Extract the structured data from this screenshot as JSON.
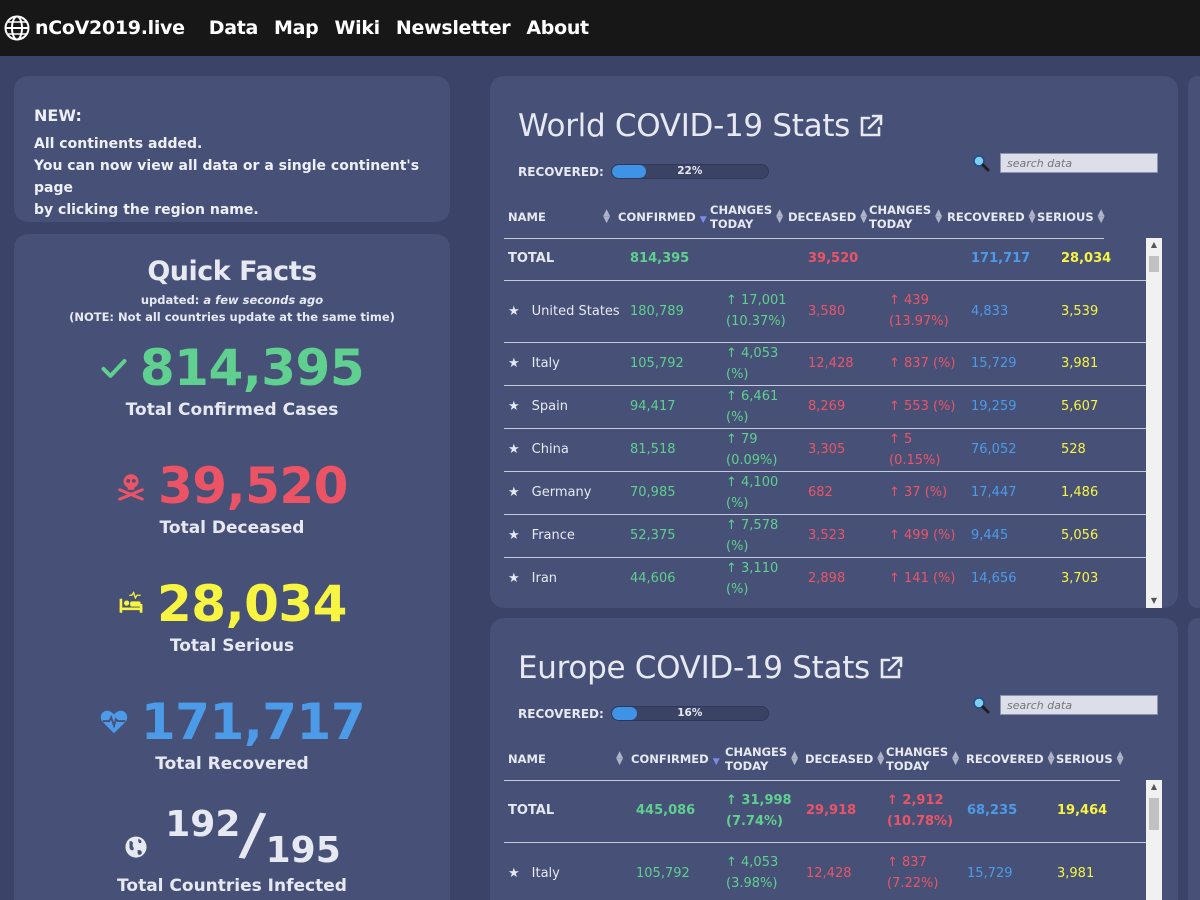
{
  "nav": {
    "brand": "nCoV2019.live",
    "links": [
      "Data",
      "Map",
      "Wiki",
      "Newsletter",
      "About"
    ]
  },
  "news": {
    "heading": "NEW:",
    "lines": [
      "All continents added.",
      "You can now view all data or a single continent's page",
      "by clicking the region name."
    ]
  },
  "facts": {
    "title": "Quick Facts",
    "updated_label": "updated:",
    "updated_value": "a few seconds ago",
    "note": "(NOTE: Not all countries update at the same time)",
    "confirmed": {
      "value": "814,395",
      "label": "Total Confirmed Cases"
    },
    "deceased": {
      "value": "39,520",
      "label": "Total Deceased"
    },
    "serious": {
      "value": "28,034",
      "label": "Total Serious"
    },
    "recovered": {
      "value": "171,717",
      "label": "Total Recovered"
    },
    "countries": {
      "infected": "192",
      "total": "195",
      "label": "Total Countries Infected"
    }
  },
  "colors": {
    "confirmed": "#5fd08f",
    "deceased": "#ec5466",
    "serious": "#f7f442",
    "recovered": "#4c9be8"
  },
  "world": {
    "title": "World COVID-19 Stats",
    "recovered_label": "RECOVERED:",
    "recovered_pct": 22,
    "recovered_text": "22%",
    "search_placeholder": "search data",
    "headers": [
      "NAME",
      "CONFIRMED",
      "CHANGES TODAY",
      "DECEASED",
      "CHANGES TODAY",
      "RECOVERED",
      "SERIOUS"
    ],
    "total": {
      "name": "TOTAL",
      "confirmed": "814,395",
      "conf_change": "",
      "deceased": "39,520",
      "dec_change": "",
      "recovered": "171,717",
      "serious": "28,034"
    },
    "rows": [
      {
        "name": "United States",
        "confirmed": "180,789",
        "conf_change": "↑ 17,001 (10.37%)",
        "deceased": "3,580",
        "dec_change": "↑ 439 (13.97%)",
        "recovered": "4,833",
        "serious": "3,539"
      },
      {
        "name": "Italy",
        "confirmed": "105,792",
        "conf_change": "↑ 4,053 (%)",
        "deceased": "12,428",
        "dec_change": "↑ 837 (%)",
        "recovered": "15,729",
        "serious": "3,981"
      },
      {
        "name": "Spain",
        "confirmed": "94,417",
        "conf_change": "↑ 6,461 (%)",
        "deceased": "8,269",
        "dec_change": "↑ 553 (%)",
        "recovered": "19,259",
        "serious": "5,607"
      },
      {
        "name": "China",
        "confirmed": "81,518",
        "conf_change": "↑ 79 (0.09%)",
        "deceased": "3,305",
        "dec_change": "↑ 5 (0.15%)",
        "recovered": "76,052",
        "serious": "528"
      },
      {
        "name": "Germany",
        "confirmed": "70,985",
        "conf_change": "↑ 4,100 (%)",
        "deceased": "682",
        "dec_change": "↑ 37 (%)",
        "recovered": "17,447",
        "serious": "1,486"
      },
      {
        "name": "France",
        "confirmed": "52,375",
        "conf_change": "↑ 7,578 (%)",
        "deceased": "3,523",
        "dec_change": "↑ 499 (%)",
        "recovered": "9,445",
        "serious": "5,056"
      },
      {
        "name": "Iran",
        "confirmed": "44,606",
        "conf_change": "↑ 3,110 (%)",
        "deceased": "2,898",
        "dec_change": "↑ 141 (%)",
        "recovered": "14,656",
        "serious": "3,703"
      }
    ]
  },
  "europe": {
    "title": "Europe COVID-19 Stats",
    "recovered_label": "RECOVERED:",
    "recovered_pct": 16,
    "recovered_text": "16%",
    "search_placeholder": "search data",
    "headers": [
      "NAME",
      "CONFIRMED",
      "CHANGES TODAY",
      "DECEASED",
      "CHANGES TODAY",
      "RECOVERED",
      "SERIOUS"
    ],
    "total": {
      "name": "TOTAL",
      "confirmed": "445,086",
      "conf_change": "↑ 31,998 (7.74%)",
      "deceased": "29,918",
      "dec_change": "↑ 2,912 (10.78%)",
      "recovered": "68,235",
      "serious": "19,464"
    },
    "rows": [
      {
        "name": "Italy",
        "confirmed": "105,792",
        "conf_change": "↑ 4,053 (3.98%)",
        "deceased": "12,428",
        "dec_change": "↑ 837 (7.22%)",
        "recovered": "15,729",
        "serious": "3,981"
      }
    ]
  }
}
